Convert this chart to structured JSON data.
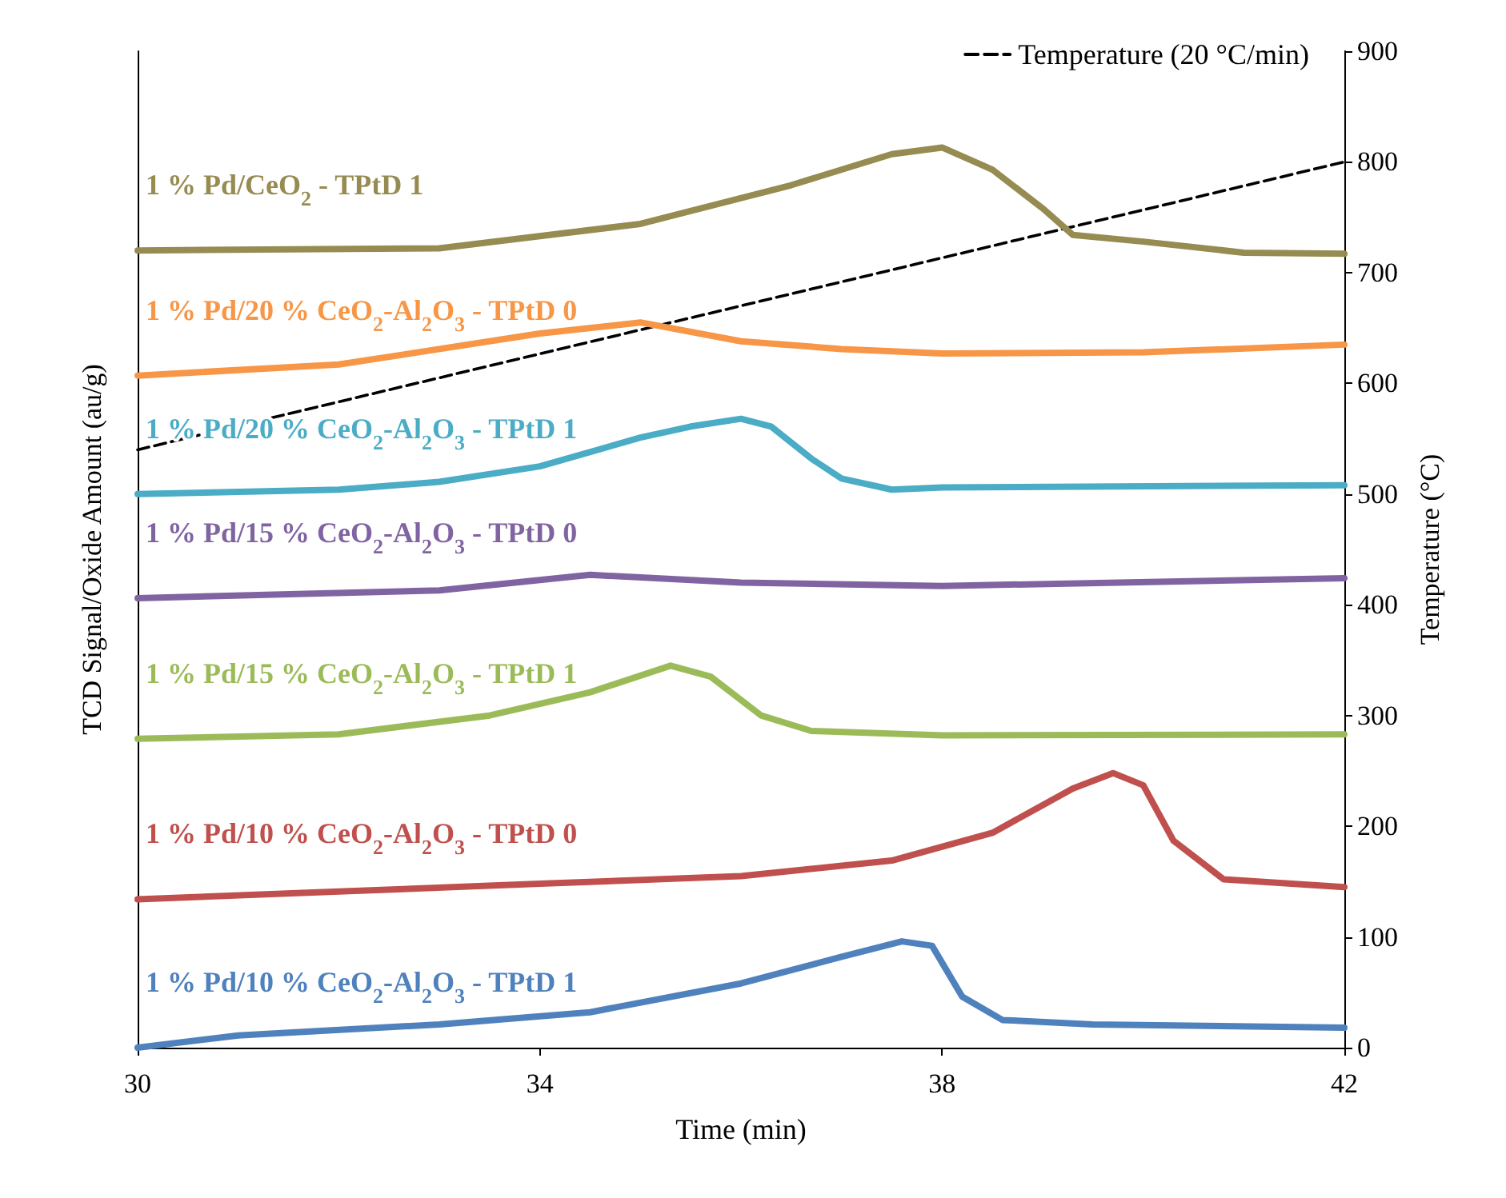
{
  "chart_data": {
    "type": "line",
    "xlabel": "Time (min)",
    "ylabel": "TCD Signal/Oxide Amount (au/g)",
    "y2label": "Temperature (°C)",
    "xlim": [
      30,
      42
    ],
    "xticks": [
      30,
      34,
      38,
      42
    ],
    "y2lim": [
      0,
      900
    ],
    "y2ticks": [
      0,
      100,
      200,
      300,
      400,
      500,
      600,
      700,
      800,
      900
    ],
    "grid": false,
    "legend": "top right",
    "marker": "none",
    "series": [
      {
        "name": "1 % Pd/CeO$_{2}$ - TPtD 1",
        "color": "#968c52",
        "axis": "y2",
        "x": [
          30,
          33,
          35,
          36.5,
          37.5,
          38,
          38.5,
          39,
          39.3,
          40,
          41,
          42
        ],
        "values": [
          720,
          722,
          744,
          779,
          807,
          813,
          793,
          758,
          734,
          728,
          718,
          717
        ]
      },
      {
        "name": "1 % Pd/20 % CeO$_{2}$-Al$_{2}$O$_{3}$ - TPtD 0",
        "color": "#f79646",
        "axis": "y2",
        "x": [
          30,
          32,
          34,
          35,
          36,
          37,
          38,
          40,
          42
        ],
        "values": [
          607,
          617,
          645,
          655,
          638,
          631,
          627,
          628,
          635
        ]
      },
      {
        "name": "1 % Pd/20 % CeO$_{2}$-Al$_{2}$O$_{3}$ - TPtD 1",
        "color": "#4bacc6",
        "axis": "y2",
        "x": [
          30,
          32,
          33,
          34,
          35,
          35.5,
          36,
          36.3,
          36.7,
          37,
          37.5,
          38,
          42
        ],
        "values": [
          500,
          504,
          511,
          525,
          551,
          561,
          568,
          561,
          532,
          514,
          504,
          506,
          508
        ]
      },
      {
        "name": "1 % Pd/15 % CeO$_{2}$-Al$_{2}$O$_{3}$ - TPtD 0",
        "color": "#8064a2",
        "axis": "y2",
        "x": [
          30,
          33,
          34.5,
          36,
          38,
          42
        ],
        "values": [
          406,
          413,
          427,
          420,
          417,
          424
        ]
      },
      {
        "name": "1 % Pd/15 % CeO$_{2}$-Al$_{2}$O$_{3}$ - TPtD 1",
        "color": "#9bbb59",
        "axis": "y2",
        "x": [
          30,
          32,
          33.5,
          34.5,
          35.3,
          35.7,
          36.2,
          36.7,
          38,
          42
        ],
        "values": [
          279,
          283,
          300,
          321,
          345,
          335,
          300,
          286,
          282,
          283
        ]
      },
      {
        "name": "1 % Pd/10 % CeO$_{2}$-Al$_{2}$O$_{3}$ - TPtD 0",
        "color": "#c0504d",
        "axis": "y2",
        "x": [
          30,
          32,
          34,
          36,
          37.5,
          38.5,
          39.3,
          39.7,
          40,
          40.3,
          40.8,
          42
        ],
        "values": [
          134,
          141,
          148,
          155,
          169,
          194,
          234,
          248,
          237,
          187,
          152,
          145
        ]
      },
      {
        "name": "1 % Pd/10 % CeO$_{2}$-Al$_{2}$O$_{3}$ - TPtD 1",
        "color": "#4f81bd",
        "axis": "y2",
        "x": [
          30,
          31,
          33,
          34.5,
          36,
          37,
          37.6,
          37.9,
          38.2,
          38.6,
          39.5,
          42
        ],
        "values": [
          0,
          11,
          21,
          32,
          58,
          82,
          96,
          92,
          46,
          25,
          21,
          18
        ]
      },
      {
        "name": "Temperature (20 °C/min)",
        "color": "#000000",
        "axis": "y2",
        "line_style": "dashed",
        "x": [
          30,
          42
        ],
        "values": [
          540,
          800
        ]
      }
    ]
  }
}
